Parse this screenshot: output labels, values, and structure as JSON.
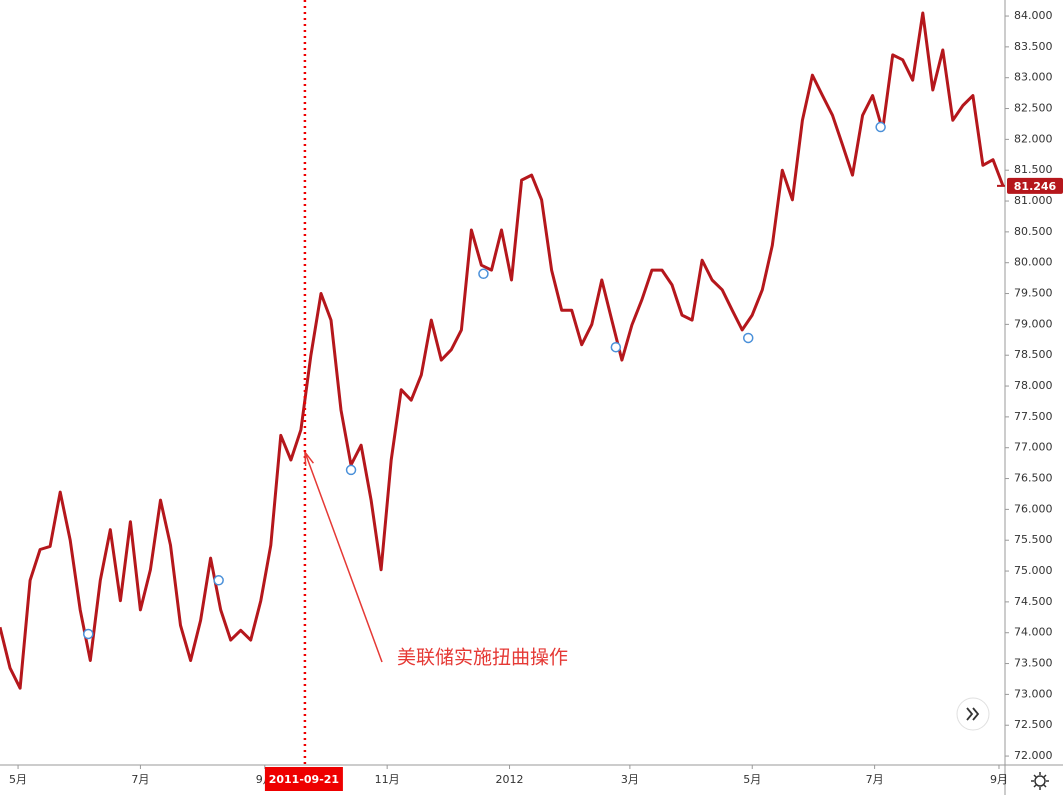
{
  "chart_data": {
    "type": "line",
    "color": "#b5171c",
    "x": [
      "2011-04-22",
      "2011-04-27",
      "2011-05-02",
      "2011-05-07",
      "2011-05-12",
      "2011-05-17",
      "2011-05-22",
      "2011-05-27",
      "2011-06-01",
      "2011-06-06",
      "2011-06-11",
      "2011-06-16",
      "2011-06-21",
      "2011-06-26",
      "2011-07-01",
      "2011-07-06",
      "2011-07-11",
      "2011-07-16",
      "2011-07-21",
      "2011-07-26",
      "2011-07-31",
      "2011-08-05",
      "2011-08-10",
      "2011-08-15",
      "2011-08-20",
      "2011-08-25",
      "2011-08-30",
      "2011-09-04",
      "2011-09-09",
      "2011-09-14",
      "2011-09-19",
      "2011-09-24",
      "2011-09-29",
      "2011-10-04",
      "2011-10-09",
      "2011-10-14",
      "2011-10-19",
      "2011-10-24",
      "2011-10-29",
      "2011-11-03",
      "2011-11-08",
      "2011-11-13",
      "2011-11-18",
      "2011-11-23",
      "2011-11-28",
      "2011-12-03",
      "2011-12-08",
      "2011-12-13",
      "2011-12-18",
      "2011-12-23",
      "2011-12-28",
      "2012-01-02",
      "2012-01-07",
      "2012-01-12",
      "2012-01-17",
      "2012-01-22",
      "2012-01-27",
      "2012-02-01",
      "2012-02-06",
      "2012-02-11",
      "2012-02-16",
      "2012-02-21",
      "2012-02-26",
      "2012-03-02",
      "2012-03-07",
      "2012-03-12",
      "2012-03-17",
      "2012-03-22",
      "2012-03-27",
      "2012-04-01",
      "2012-04-06",
      "2012-04-11",
      "2012-04-16",
      "2012-04-21",
      "2012-04-26",
      "2012-05-01",
      "2012-05-06",
      "2012-05-11",
      "2012-05-16",
      "2012-05-21",
      "2012-05-26",
      "2012-05-31",
      "2012-06-05",
      "2012-06-10",
      "2012-06-15",
      "2012-06-20",
      "2012-06-25",
      "2012-06-30",
      "2012-07-05",
      "2012-07-10",
      "2012-07-15",
      "2012-07-20",
      "2012-07-25",
      "2012-07-30",
      "2012-08-04",
      "2012-08-09",
      "2012-08-14",
      "2012-08-19",
      "2012-08-24",
      "2012-08-29",
      "2012-09-03"
    ],
    "values": [
      74.09,
      73.43,
      73.1,
      74.85,
      75.35,
      75.4,
      76.28,
      75.5,
      74.37,
      73.55,
      74.85,
      75.67,
      74.52,
      75.8,
      74.37,
      75.02,
      76.15,
      75.42,
      74.12,
      73.55,
      74.2,
      75.21,
      74.37,
      73.88,
      74.04,
      73.88,
      74.52,
      75.42,
      77.2,
      76.8,
      77.29,
      78.5,
      79.5,
      79.07,
      77.61,
      76.72,
      77.04,
      76.15,
      75.02,
      76.8,
      77.94,
      77.77,
      78.18,
      79.07,
      78.42,
      78.59,
      78.91,
      80.53,
      79.96,
      79.88,
      80.53,
      79.72,
      81.34,
      81.42,
      81.02,
      79.88,
      79.23,
      79.23,
      78.67,
      79.0,
      79.72,
      79.07,
      78.42,
      78.99,
      79.4,
      79.88,
      79.88,
      79.64,
      79.15,
      79.07,
      80.04,
      79.72,
      79.56,
      79.23,
      78.91,
      79.15,
      79.56,
      80.28,
      81.5,
      81.02,
      82.31,
      83.04,
      82.71,
      82.39,
      81.91,
      81.42,
      82.39,
      82.71,
      82.15,
      83.37,
      83.29,
      82.96,
      84.05,
      82.8,
      83.45,
      82.31,
      82.55,
      82.71,
      81.58,
      81.67,
      81.246
    ],
    "events": {
      "x": [
        "2011-06-05",
        "2011-08-09",
        "2011-10-14",
        "2011-12-19",
        "2012-02-23",
        "2012-04-29",
        "2012-07-04"
      ],
      "values": [
        73.98,
        74.85,
        76.64,
        79.82,
        78.63,
        78.78,
        82.2
      ]
    },
    "xlim": [
      "2011-04-22",
      "2012-09-04"
    ],
    "xticks": [
      {
        "value": "2011-05-01",
        "label": "5月"
      },
      {
        "value": "2011-07-01",
        "label": "7月"
      },
      {
        "value": "2011-09-01",
        "label": "9月"
      },
      {
        "value": "2011-11-01",
        "label": "11月"
      },
      {
        "value": "2012-01-01",
        "label": "2012"
      },
      {
        "value": "2012-03-01",
        "label": "3月"
      },
      {
        "value": "2012-05-01",
        "label": "5月"
      },
      {
        "value": "2012-07-01",
        "label": "7月"
      },
      {
        "value": "2012-09-01",
        "label": "9月"
      }
    ],
    "ylim": [
      71.855,
      84.26
    ],
    "yticks": [
      {
        "value": 72,
        "label": "72.000"
      },
      {
        "value": 72.5,
        "label": "72.500"
      },
      {
        "value": 73,
        "label": "73.000"
      },
      {
        "value": 73.5,
        "label": "73.500"
      },
      {
        "value": 74,
        "label": "74.000"
      },
      {
        "value": 74.5,
        "label": "74.500"
      },
      {
        "value": 75,
        "label": "75.000"
      },
      {
        "value": 75.5,
        "label": "75.500"
      },
      {
        "value": 76,
        "label": "76.000"
      },
      {
        "value": 76.5,
        "label": "76.500"
      },
      {
        "value": 77,
        "label": "77.000"
      },
      {
        "value": 77.5,
        "label": "77.500"
      },
      {
        "value": 78,
        "label": "78.000"
      },
      {
        "value": 78.5,
        "label": "78.500"
      },
      {
        "value": 79,
        "label": "79.000"
      },
      {
        "value": 79.5,
        "label": "79.500"
      },
      {
        "value": 80,
        "label": "80.000"
      },
      {
        "value": 80.5,
        "label": "80.500"
      },
      {
        "value": 81,
        "label": "81.000"
      },
      {
        "value": 81.5,
        "label": "81.500"
      },
      {
        "value": 82,
        "label": "82.000"
      },
      {
        "value": 82.5,
        "label": "82.500"
      },
      {
        "value": 83,
        "label": "83.000"
      },
      {
        "value": 83.5,
        "label": "83.500"
      },
      {
        "value": 84,
        "label": "84.000"
      }
    ],
    "crosshair_x": "2011-09-21",
    "annotation": {
      "text": "美联储实施扭曲操作",
      "x": "2011-09-21",
      "y": 76.93,
      "color": "#e53935"
    }
  }
}
